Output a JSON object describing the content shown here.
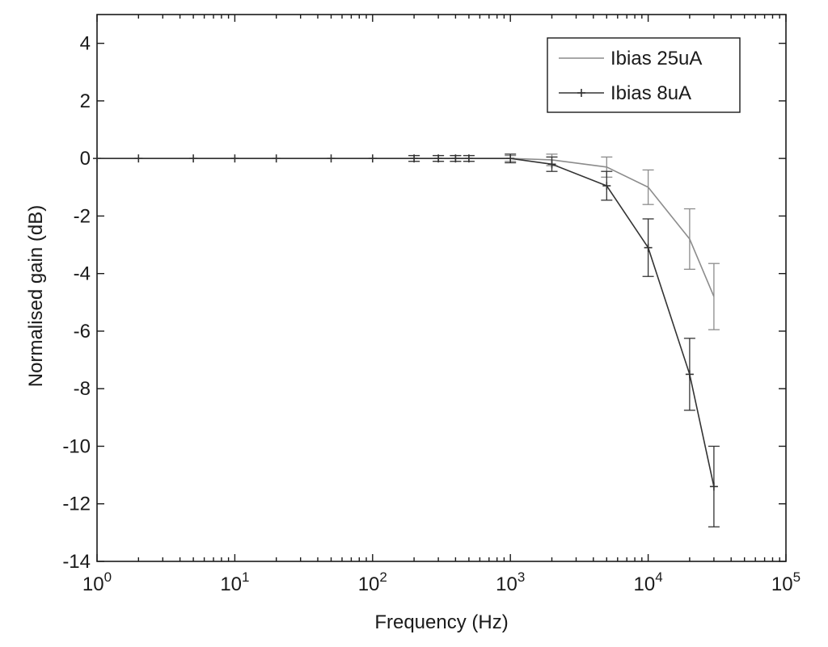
{
  "chart_data": {
    "type": "line",
    "xlabel": "Frequency (Hz)",
    "ylabel": "Normalised gain (dB)",
    "xscale": "log",
    "xlim": [
      1,
      100000
    ],
    "ylim": [
      -14,
      5
    ],
    "grid": false,
    "legend_position": "top-right",
    "x_ticks": [
      {
        "value": 1,
        "base": "10",
        "exp": "0"
      },
      {
        "value": 10,
        "base": "10",
        "exp": "1"
      },
      {
        "value": 100,
        "base": "10",
        "exp": "2"
      },
      {
        "value": 1000,
        "base": "10",
        "exp": "3"
      },
      {
        "value": 10000,
        "base": "10",
        "exp": "4"
      },
      {
        "value": 100000,
        "base": "10",
        "exp": "5"
      }
    ],
    "y_ticks": [
      4,
      2,
      0,
      -2,
      -4,
      -6,
      -8,
      -10,
      -12,
      -14
    ],
    "series": [
      {
        "name": "Ibias 25uA",
        "color": "#8c8c8c",
        "marker": "none",
        "x": [
          1,
          2,
          5,
          10,
          20,
          50,
          100,
          200,
          300,
          400,
          500,
          1000,
          2000,
          5000,
          10000,
          20000,
          30000
        ],
        "y": [
          0,
          0,
          0,
          0,
          0,
          0,
          0,
          0,
          0,
          0,
          0,
          0,
          -0.05,
          -0.3,
          -1.0,
          -2.8,
          -4.8
        ],
        "err": [
          0,
          0,
          0,
          0,
          0,
          0,
          0,
          0.1,
          0.1,
          0.1,
          0.1,
          0.1,
          0.2,
          0.35,
          0.6,
          1.05,
          1.15
        ]
      },
      {
        "name": "Ibias 8uA",
        "color": "#333333",
        "marker": "plus",
        "x": [
          1,
          2,
          5,
          10,
          20,
          50,
          100,
          200,
          300,
          400,
          500,
          1000,
          2000,
          5000,
          10000,
          20000,
          30000
        ],
        "y": [
          0,
          0,
          0,
          0,
          0,
          0,
          0,
          0,
          0,
          0,
          0,
          0,
          -0.2,
          -0.95,
          -3.1,
          -7.5,
          -11.4
        ],
        "err": [
          0,
          0,
          0,
          0,
          0,
          0,
          0,
          0.1,
          0.1,
          0.1,
          0.1,
          0.15,
          0.25,
          0.5,
          1.0,
          1.25,
          1.4
        ]
      }
    ]
  }
}
